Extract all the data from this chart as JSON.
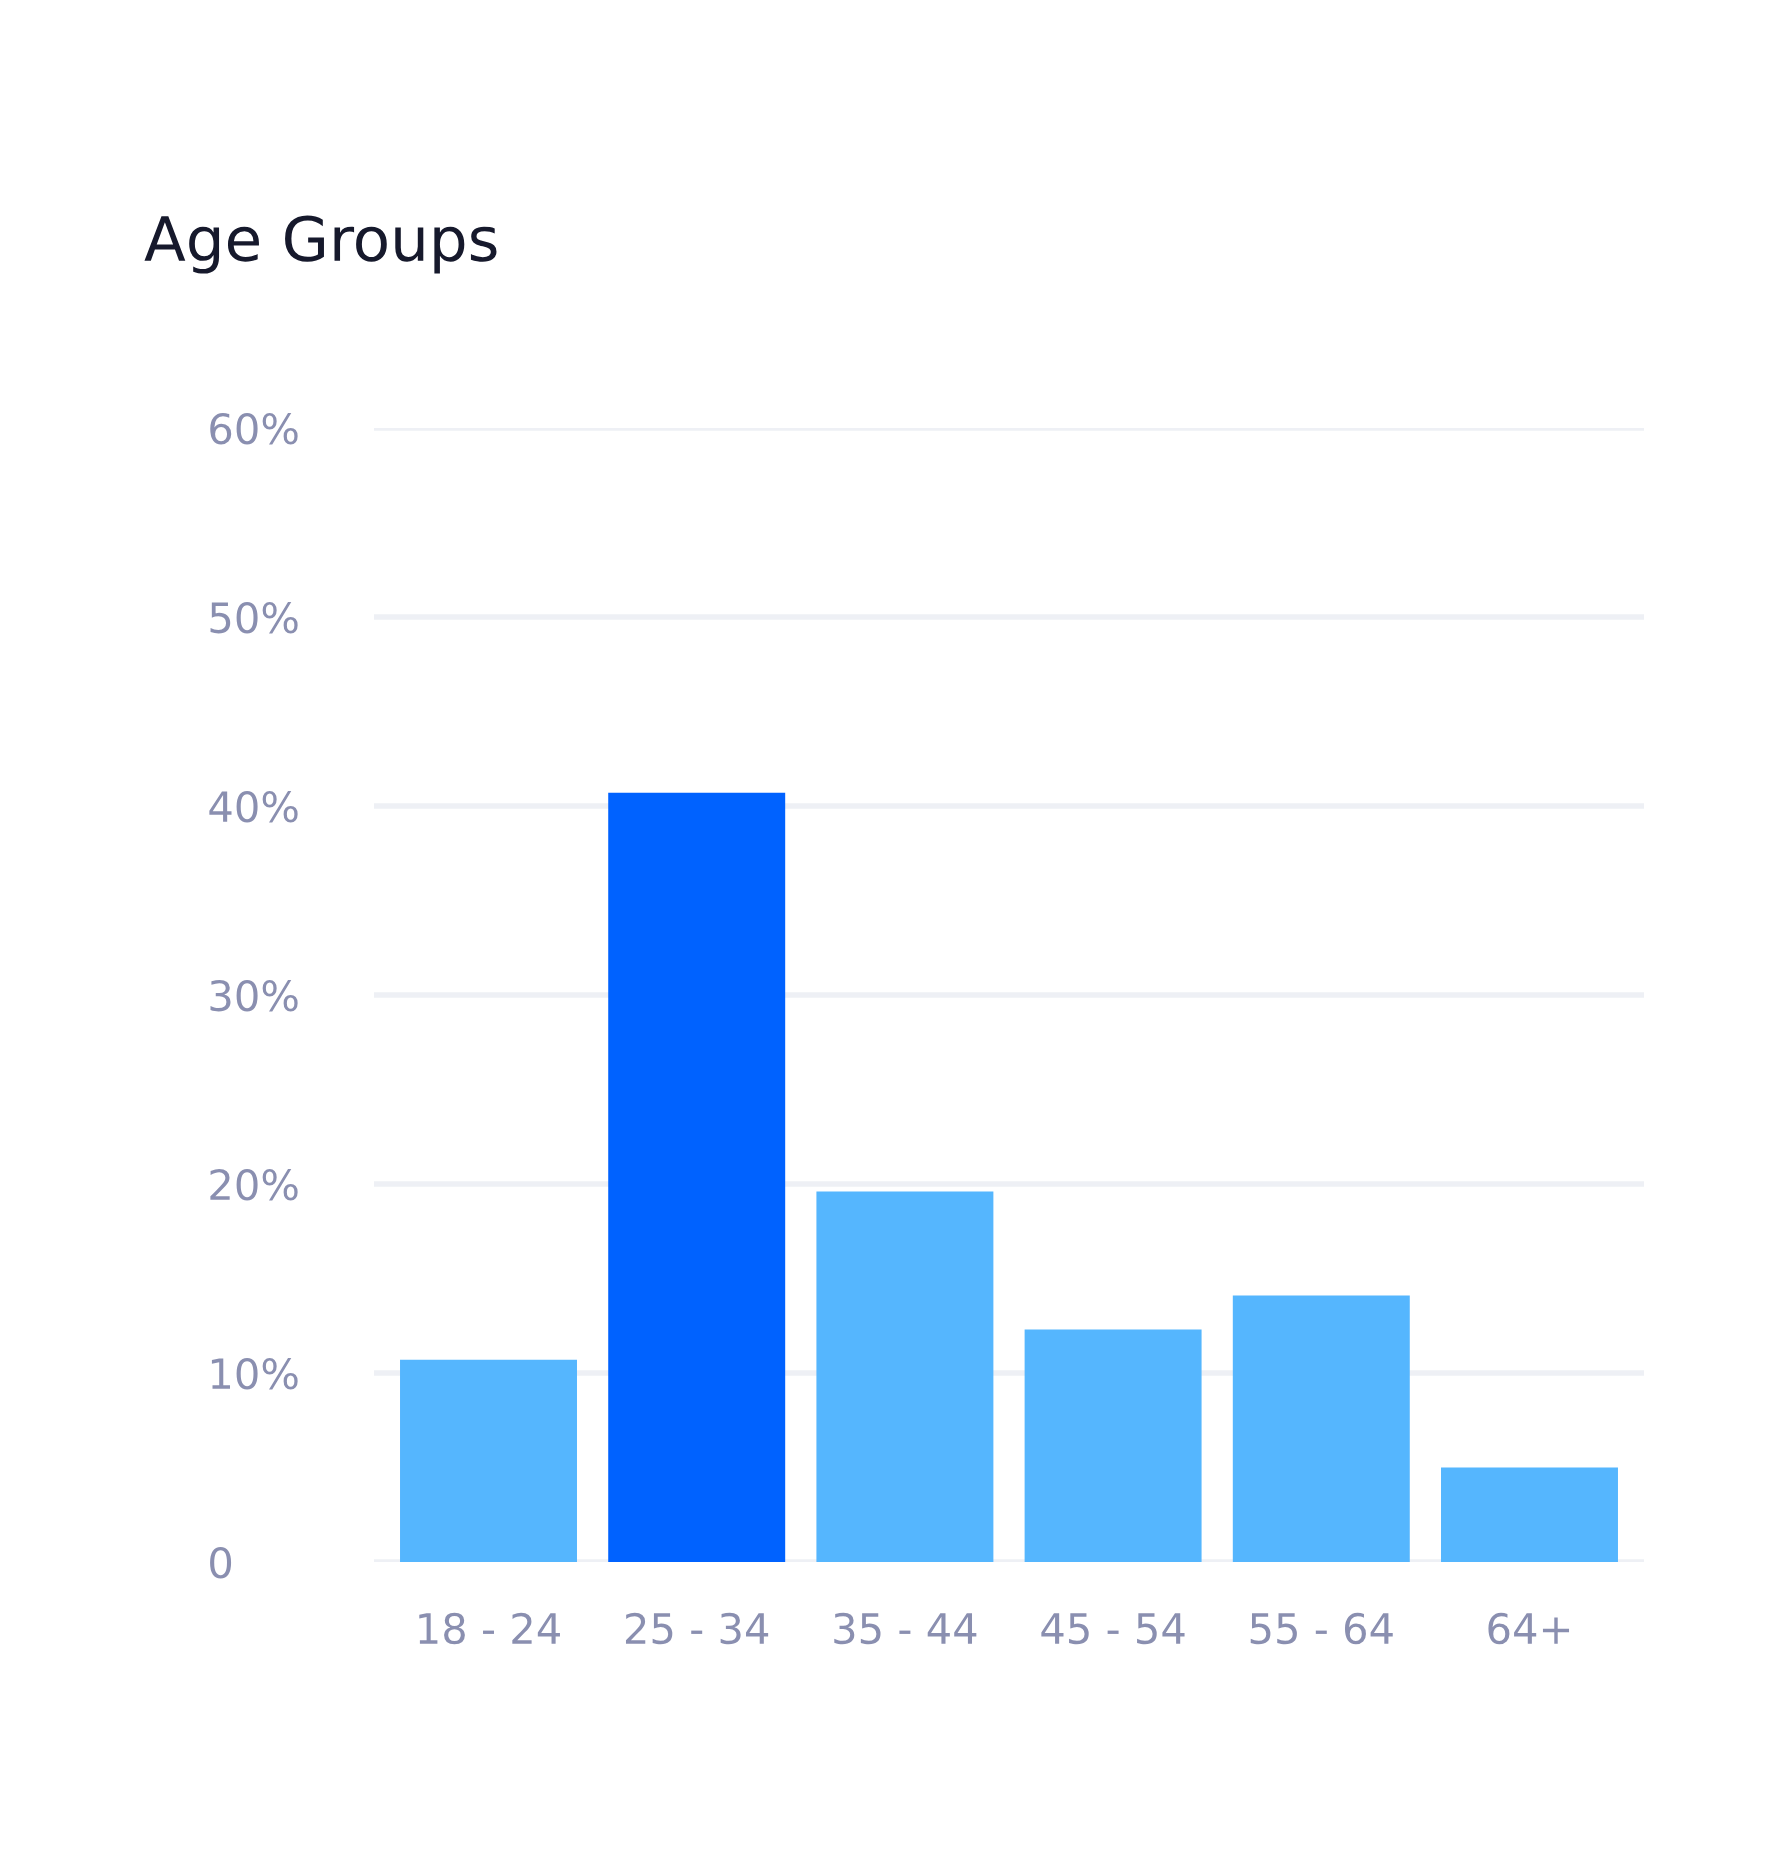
{
  "chart_data": {
    "type": "bar",
    "title": "Age Groups",
    "categories": [
      "18 - 24",
      "25 - 34",
      "35 - 44",
      "45 - 54",
      "55 - 64",
      "64+"
    ],
    "values": [
      10.7,
      40.7,
      19.6,
      12.3,
      14.1,
      5.0
    ],
    "colors": [
      "#55b6fe",
      "#0062ff",
      "#55b6fe",
      "#55b6fe",
      "#55b6fe",
      "#55b6fe"
    ],
    "ylim": [
      0,
      60
    ],
    "yticks": [
      {
        "value": 0,
        "label": "0"
      },
      {
        "value": 10,
        "label": "10%"
      },
      {
        "value": 20,
        "label": "20%"
      },
      {
        "value": 30,
        "label": "30%"
      },
      {
        "value": 40,
        "label": "40%"
      },
      {
        "value": 50,
        "label": "50%"
      },
      {
        "value": 60,
        "label": "60%"
      }
    ],
    "grid": "y"
  }
}
